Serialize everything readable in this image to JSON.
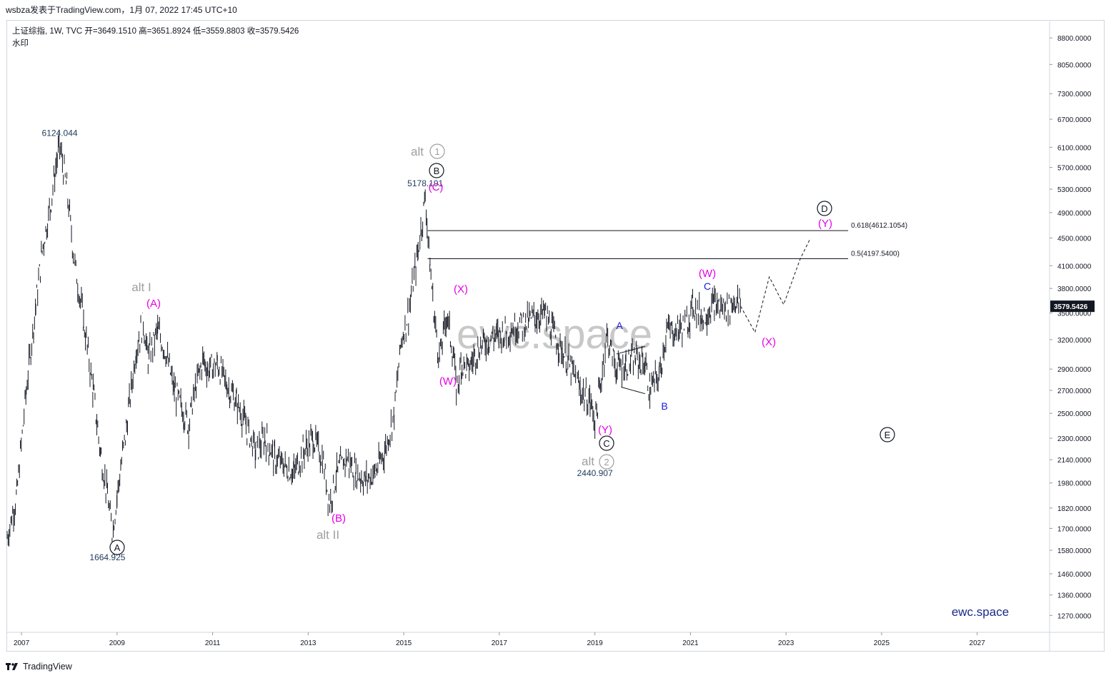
{
  "header": {
    "title": "wsbza发表于TradingView.com，1月 07, 2022 17:45 UTC+10"
  },
  "symbol_line": "上证综指, 1W, TVC  开=3649.1510  高=3651.8924  低=3559.8803  收=3579.5426",
  "watermark_label": "水印",
  "footer": {
    "brand": "TradingView"
  },
  "colors": {
    "candle": "#131722",
    "magenta": "#e600e6",
    "grey": "#9e9e9e",
    "blue": "#1a1ad6",
    "price_tag_bg": "#131722"
  },
  "chart_data": {
    "type": "line",
    "title": "上证综指, 1W, TVC",
    "xlabel": "",
    "ylabel": "",
    "log_scale": true,
    "ylim": [
      1200,
      9300
    ],
    "xlim": [
      2006.7,
      2028.5
    ],
    "x_ticks": [
      "2007",
      "2009",
      "2011",
      "2013",
      "2015",
      "2017",
      "2019",
      "2021",
      "2023",
      "2025",
      "2027"
    ],
    "y_ticks": [
      "8800.0000",
      "8050.0000",
      "7300.0000",
      "6700.0000",
      "6100.0000",
      "5700.0000",
      "5300.0000",
      "4900.0000",
      "4500.0000",
      "4100.0000",
      "3800.0000",
      "3500.0000",
      "3200.0000",
      "2900.0000",
      "2700.0000",
      "2500.0000",
      "2300.0000",
      "2140.0000",
      "1980.0000",
      "1820.0000",
      "1700.0000",
      "1580.0000",
      "1460.0000",
      "1360.0000",
      "1270.0000"
    ],
    "last_price_label": "3579.5426",
    "center_watermark": "ewc.space",
    "brand_text": "ewc.space",
    "series": [
      {
        "x": [
          2006.7,
          2006.9,
          2007.1,
          2007.3,
          2007.45,
          2007.6,
          2007.75,
          2007.8,
          2007.95,
          2008.1,
          2008.3,
          2008.5,
          2008.65,
          2008.8,
          2008.9,
          2009.0,
          2009.2,
          2009.4,
          2009.55,
          2009.65,
          2009.85,
          2010.0,
          2010.2,
          2010.4,
          2010.5,
          2010.6,
          2010.8,
          2010.9,
          2011.1,
          2011.3,
          2011.5,
          2011.7,
          2011.9,
          2012.1,
          2012.3,
          2012.5,
          2012.7,
          2012.9,
          2013.1,
          2013.3,
          2013.45,
          2013.6,
          2013.8,
          2014.0,
          2014.2,
          2014.4,
          2014.6,
          2014.8,
          2014.95,
          2015.1,
          2015.3,
          2015.45,
          2015.55,
          2015.65,
          2015.75,
          2015.9,
          2016.05,
          2016.1,
          2016.2,
          2016.35,
          2016.55,
          2016.75,
          2016.95,
          2017.15,
          2017.35,
          2017.55,
          2017.75,
          2017.95,
          2018.1,
          2018.3,
          2018.5,
          2018.7,
          2018.9,
          2019.0,
          2019.1,
          2019.25,
          2019.45,
          2019.65,
          2019.85,
          2020.05,
          2020.15,
          2020.35,
          2020.5,
          2020.75,
          2020.95,
          2021.05,
          2021.25,
          2021.5,
          2021.75,
          2021.95,
          2022.05
        ],
        "y": [
          1650,
          1900,
          2700,
          3600,
          4400,
          5000,
          5900,
          6124,
          5300,
          4200,
          3400,
          2700,
          2200,
          1900,
          1665,
          1900,
          2400,
          3100,
          3400,
          3000,
          3300,
          3100,
          2700,
          2500,
          2400,
          2650,
          3000,
          2900,
          2950,
          2750,
          2600,
          2400,
          2200,
          2300,
          2150,
          2100,
          2050,
          2200,
          2300,
          2150,
          1850,
          2050,
          2150,
          2050,
          2000,
          2050,
          2200,
          2500,
          3200,
          3500,
          4300,
          5178,
          4100,
          3400,
          3000,
          3500,
          3000,
          2700,
          2950,
          2900,
          3100,
          3200,
          3250,
          3300,
          3350,
          3400,
          3450,
          3500,
          3300,
          3100,
          2900,
          2700,
          2600,
          2441,
          2700,
          3250,
          2900,
          2950,
          3000,
          2950,
          2700,
          2850,
          3300,
          3300,
          3400,
          3600,
          3450,
          3600,
          3550,
          3650,
          3580
        ]
      },
      {
        "name": "forecast",
        "x": [
          2022.05,
          2022.35,
          2022.65,
          2022.95,
          2023.3,
          2023.5
        ],
        "y": [
          3580,
          3280,
          3950,
          3600,
          4200,
          4480
        ]
      }
    ],
    "hlines": [
      {
        "label": "0.618(4612.1054)",
        "value": 4612.1054,
        "x_from": 2015.5,
        "x_to": 2024.3
      },
      {
        "label": "0.5(4197.5400)",
        "value": 4197.54,
        "x_from": 2015.5,
        "x_to": 2024.3
      }
    ],
    "annotations": [
      {
        "text": "6124.044",
        "x": 2007.8,
        "y": 6124.044,
        "kind": "price"
      },
      {
        "text": "1664.925",
        "x": 2008.8,
        "y": 1664.925,
        "kind": "price"
      },
      {
        "text": "5178.191",
        "x": 2015.45,
        "y": 5178.191,
        "kind": "price"
      },
      {
        "text": "2440.907",
        "x": 2019.0,
        "y": 2440.907,
        "kind": "price"
      },
      {
        "text": "A",
        "x": 2008.8,
        "kind": "circled-black"
      },
      {
        "text": "B",
        "x": 2015.45,
        "kind": "circled-black"
      },
      {
        "text": "C",
        "x": 2019.0,
        "kind": "circled-black"
      },
      {
        "text": "D",
        "x": 2023.5,
        "kind": "circled-black"
      },
      {
        "text": "E",
        "x": 2024.7,
        "kind": "circled-black"
      },
      {
        "text": "alt",
        "x": 2015.3,
        "kind": "grey"
      },
      {
        "text": "1",
        "x": 2015.45,
        "kind": "circled-grey"
      },
      {
        "text": "alt",
        "x": 2018.9,
        "kind": "grey"
      },
      {
        "text": "2",
        "x": 2019.0,
        "kind": "circled-grey"
      },
      {
        "text": "alt I",
        "x": 2009.35,
        "kind": "grey"
      },
      {
        "text": "alt II",
        "x": 2013.2,
        "kind": "grey"
      },
      {
        "text": "(A)",
        "x": 2009.55,
        "kind": "magenta"
      },
      {
        "text": "(B)",
        "x": 2013.45,
        "kind": "magenta"
      },
      {
        "text": "(C)",
        "x": 2015.45,
        "kind": "magenta"
      },
      {
        "text": "(W)",
        "x": 2015.75,
        "kind": "magenta"
      },
      {
        "text": "(X)",
        "x": 2016.05,
        "kind": "magenta"
      },
      {
        "text": "(Y)",
        "x": 2019.0,
        "kind": "magenta"
      },
      {
        "text": "(W)",
        "x": 2021.0,
        "kind": "magenta"
      },
      {
        "text": "(X)",
        "x": 2022.35,
        "kind": "magenta"
      },
      {
        "text": "(Y)",
        "x": 2023.5,
        "kind": "magenta"
      },
      {
        "text": "A",
        "x": 2019.25,
        "kind": "blue"
      },
      {
        "text": "B",
        "x": 2020.15,
        "kind": "blue"
      },
      {
        "text": "C",
        "x": 2021.05,
        "kind": "blue"
      }
    ]
  }
}
